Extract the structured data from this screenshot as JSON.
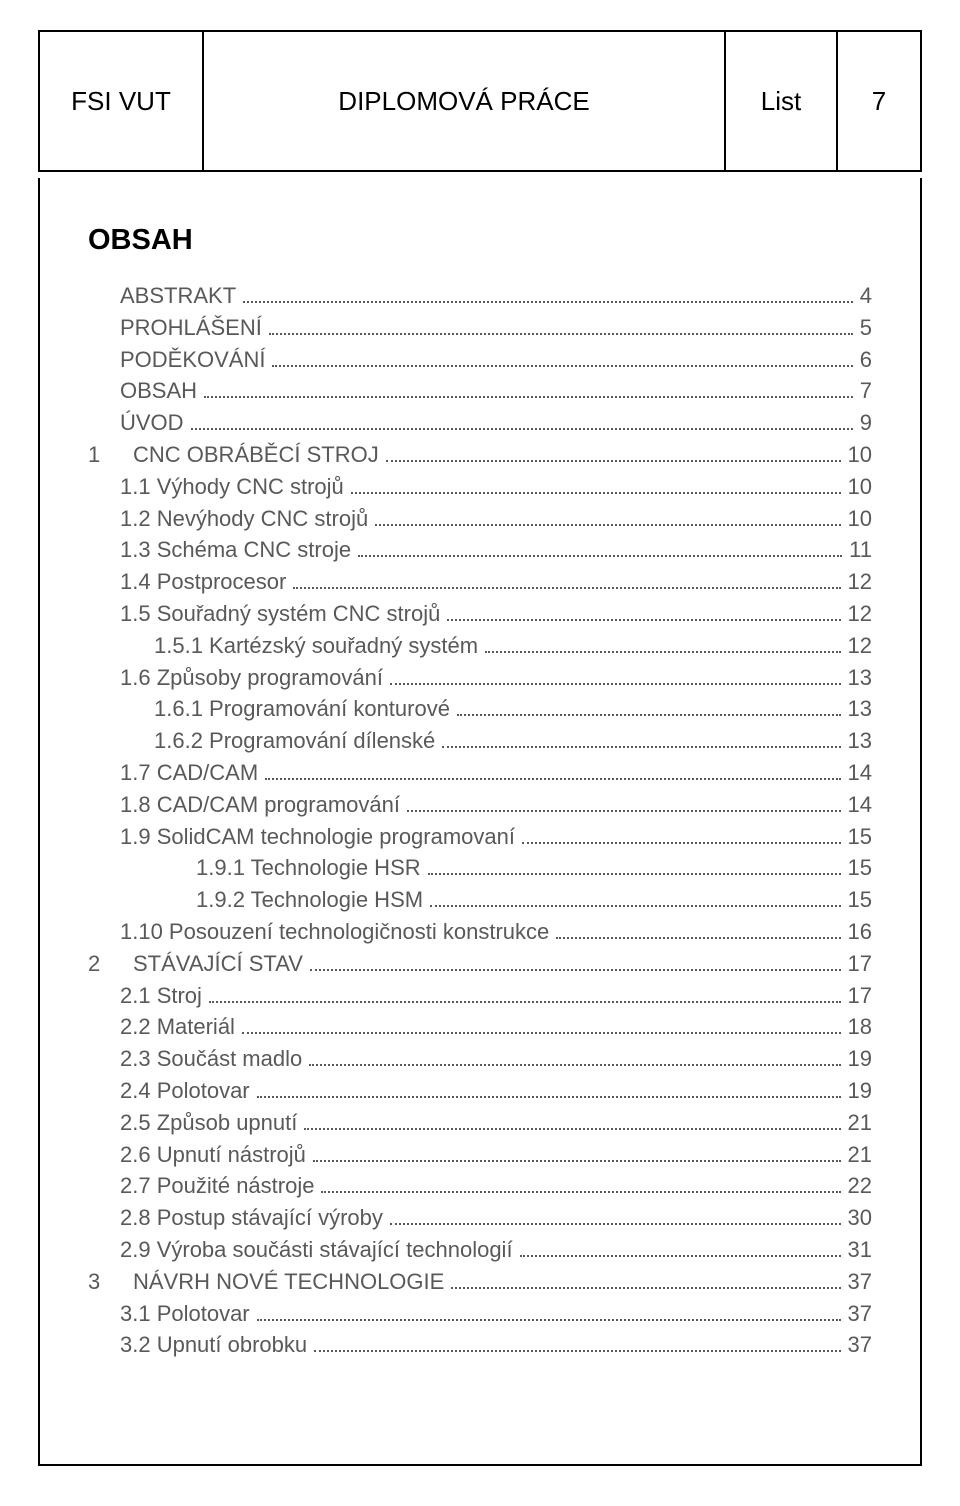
{
  "header": {
    "fsi": "FSI VUT",
    "title": "DIPLOMOVÁ PRÁCE",
    "list_label": "List",
    "page_no": "7"
  },
  "obsah_title": "OBSAH",
  "text_color": "#595959",
  "font_size_body": 22,
  "toc": [
    {
      "indent": 1,
      "label": "ABSTRAKT",
      "page": "4"
    },
    {
      "indent": 1,
      "label": "PROHLÁŠENÍ",
      "page": "5"
    },
    {
      "indent": 1,
      "label": "PODĚKOVÁNÍ",
      "page": "6"
    },
    {
      "indent": 1,
      "label": "OBSAH",
      "page": "7"
    },
    {
      "indent": 1,
      "label": "ÚVOD",
      "page": "9"
    },
    {
      "indent": 0,
      "num": "1",
      "label": "CNC OBRÁBĚCÍ STROJ",
      "page": "10"
    },
    {
      "indent": 1,
      "label": "1.1 Výhody CNC strojů",
      "page": "10"
    },
    {
      "indent": 1,
      "label": "1.2 Nevýhody CNC strojů",
      "page": "10"
    },
    {
      "indent": 1,
      "label": "1.3 Schéma CNC stroje",
      "page": "11"
    },
    {
      "indent": 1,
      "label": "1.4 Postprocesor",
      "page": "12"
    },
    {
      "indent": 1,
      "label": "1.5 Souřadný systém CNC strojů",
      "page": "12"
    },
    {
      "indent": 2,
      "label": "1.5.1 Kartézský souřadný systém",
      "page": "12"
    },
    {
      "indent": 1,
      "label": "1.6 Způsoby programování",
      "page": "13"
    },
    {
      "indent": 2,
      "label": "1.6.1 Programování konturové",
      "page": "13"
    },
    {
      "indent": 2,
      "label": "1.6.2 Programování dílenské",
      "page": "13"
    },
    {
      "indent": 1,
      "label": "1.7 CAD/CAM",
      "page": "14"
    },
    {
      "indent": 1,
      "label": "1.8 CAD/CAM programování",
      "page": "14"
    },
    {
      "indent": 1,
      "label": "1.9 SolidCAM technologie programovaní",
      "page": "15"
    },
    {
      "indent": 3,
      "label": "1.9.1 Technologie HSR",
      "page": "15"
    },
    {
      "indent": 3,
      "label": "1.9.2 Technologie HSM",
      "page": "15"
    },
    {
      "indent": 1,
      "label": "1.10 Posouzení technologičnosti konstrukce",
      "page": "16"
    },
    {
      "indent": 0,
      "num": "2",
      "label": "STÁVAJÍCÍ STAV",
      "page": "17"
    },
    {
      "indent": 1,
      "label": "2.1 Stroj",
      "page": "17"
    },
    {
      "indent": 1,
      "label": "2.2 Materiál",
      "page": "18"
    },
    {
      "indent": 1,
      "label": "2.3 Součást madlo",
      "page": "19"
    },
    {
      "indent": 1,
      "label": "2.4 Polotovar",
      "page": "19"
    },
    {
      "indent": 1,
      "label": "2.5 Způsob upnutí",
      "page": "21"
    },
    {
      "indent": 1,
      "label": "2.6 Upnutí nástrojů",
      "page": "21"
    },
    {
      "indent": 1,
      "label": "2.7 Použité nástroje",
      "page": "22"
    },
    {
      "indent": 1,
      "label": "2.8 Postup stávající výroby",
      "page": "30"
    },
    {
      "indent": 1,
      "label": "2.9 Výroba součásti stávající technologií",
      "page": "31"
    },
    {
      "indent": 0,
      "num": "3",
      "label": "NÁVRH NOVÉ TECHNOLOGIE",
      "page": "37"
    },
    {
      "indent": 1,
      "label": "3.1 Polotovar",
      "page": "37"
    },
    {
      "indent": 1,
      "label": "3.2 Upnutí obrobku",
      "page": "37"
    }
  ]
}
